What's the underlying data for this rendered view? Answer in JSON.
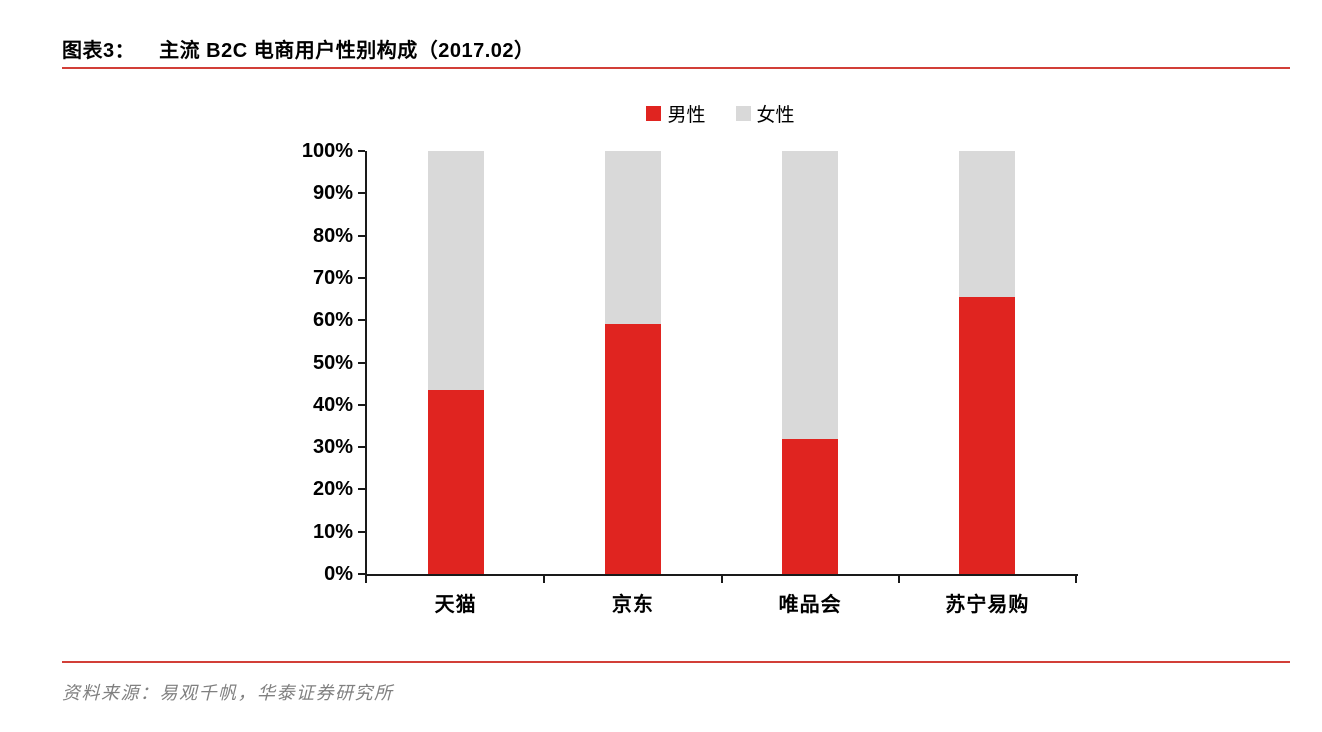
{
  "page": {
    "figure_label": "图表3：",
    "figure_title": "主流 B2C 电商用户性别构成（2017.02）",
    "source_text": "资料来源：易观千帆，华泰证券研究所"
  },
  "colors": {
    "male_red": "#e02420",
    "female_gray": "#d9d9d9",
    "rule_red": "#d23f38",
    "axis_black": "#1a1a1a",
    "source_gray": "#808080"
  },
  "chart_data": {
    "type": "bar",
    "stacked": true,
    "title": "主流 B2C 电商用户性别构成（2017.02）",
    "categories": [
      "天猫",
      "京东",
      "唯品会",
      "苏宁易购"
    ],
    "series": [
      {
        "name": "男性",
        "color": "#e02420",
        "values": [
          43.5,
          59,
          32,
          65.5
        ]
      },
      {
        "name": "女性",
        "color": "#d9d9d9",
        "values": [
          56.5,
          41,
          68,
          34.5
        ]
      }
    ],
    "xlabel": "",
    "ylabel": "",
    "ylim": [
      0,
      100
    ],
    "ytick_step": 10,
    "yticks": [
      "0%",
      "10%",
      "20%",
      "30%",
      "40%",
      "50%",
      "60%",
      "70%",
      "80%",
      "90%",
      "100%"
    ],
    "legend_position": "top-center",
    "grid": false
  }
}
